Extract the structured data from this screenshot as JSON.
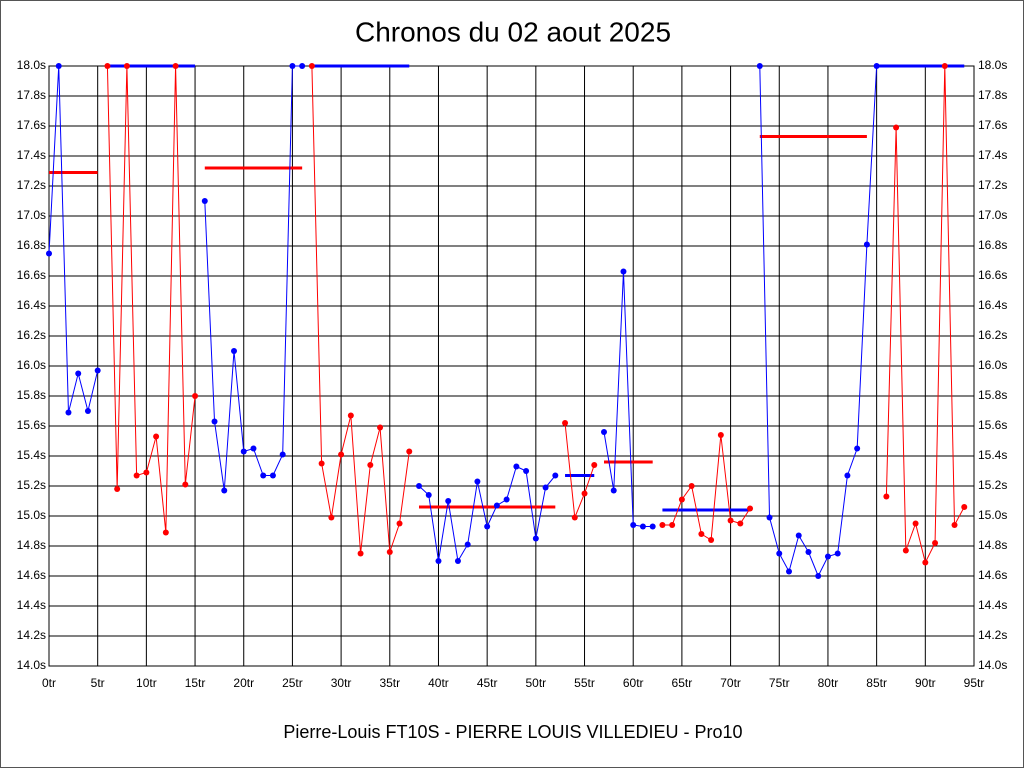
{
  "chart_data": {
    "type": "line",
    "title": "Chronos du 02 aout 2025",
    "x_label": "Pierre-Louis FT10S - PIERRE LOUIS VILLEDIEU - Pro10",
    "x": [
      0,
      1,
      2,
      3,
      4,
      5,
      6,
      7,
      8,
      9,
      10,
      11,
      12,
      13,
      14,
      15,
      16,
      17,
      18,
      19,
      20,
      21,
      22,
      23,
      24,
      25,
      26,
      27,
      28,
      29,
      30,
      31,
      32,
      33,
      34,
      35,
      36,
      37,
      38,
      39,
      40,
      41,
      42,
      43,
      44,
      45,
      46,
      47,
      48,
      49,
      50,
      51,
      52,
      53,
      54,
      55,
      56,
      57,
      58,
      59,
      60,
      61,
      62,
      63,
      64,
      65,
      66,
      67,
      68,
      69,
      70,
      71,
      72,
      73,
      74,
      75,
      76,
      77,
      78,
      79,
      80,
      81,
      82,
      83,
      84,
      85,
      86,
      87,
      88,
      89,
      90,
      91,
      92,
      93,
      94
    ],
    "series": [
      {
        "color": "#0000ff",
        "values": [
          16.75,
          18,
          15.69,
          15.95,
          15.7,
          15.97,
          null,
          null,
          null,
          null,
          null,
          null,
          null,
          null,
          null,
          null,
          17.1,
          15.63,
          15.17,
          16.1,
          15.43,
          15.45,
          15.27,
          15.27,
          15.41,
          18,
          18,
          null,
          null,
          null,
          null,
          null,
          null,
          null,
          null,
          null,
          null,
          null,
          15.2,
          15.14,
          14.7,
          15.1,
          14.7,
          14.81,
          15.23,
          14.93,
          15.07,
          15.11,
          15.33,
          15.3,
          14.85,
          15.19,
          15.27,
          null,
          null,
          null,
          null,
          15.56,
          15.17,
          16.63,
          14.94,
          14.93,
          14.93,
          null,
          null,
          null,
          null,
          null,
          null,
          null,
          null,
          null,
          null,
          18,
          14.99,
          14.75,
          14.63,
          14.87,
          14.76,
          14.6,
          14.73,
          14.75,
          15.27,
          15.45,
          16.81,
          18,
          null,
          null,
          null,
          null,
          null,
          null,
          null,
          null,
          null
        ]
      },
      {
        "color": "#ff0000",
        "values": [
          null,
          null,
          null,
          null,
          null,
          null,
          18,
          15.18,
          18,
          15.27,
          15.29,
          15.53,
          14.89,
          18,
          15.21,
          15.8,
          null,
          null,
          null,
          null,
          null,
          null,
          null,
          null,
          null,
          null,
          null,
          18,
          15.35,
          14.99,
          15.41,
          15.67,
          14.75,
          15.34,
          15.59,
          14.76,
          14.95,
          15.43,
          null,
          null,
          null,
          null,
          null,
          null,
          null,
          null,
          null,
          null,
          null,
          null,
          null,
          null,
          null,
          15.62,
          14.99,
          15.15,
          15.34,
          null,
          null,
          null,
          null,
          null,
          null,
          14.94,
          14.94,
          15.11,
          15.2,
          14.88,
          14.84,
          15.54,
          14.97,
          14.95,
          15.05,
          null,
          null,
          null,
          null,
          null,
          null,
          null,
          null,
          null,
          null,
          null,
          null,
          null,
          15.13,
          17.59,
          14.77,
          14.95,
          14.69,
          14.82,
          18,
          14.94,
          15.06
        ]
      }
    ],
    "averages": [
      {
        "from": 0,
        "to": 5,
        "value": 17.29,
        "color": "#ff0000"
      },
      {
        "from": 6,
        "to": 15,
        "value": 18,
        "color": "#0000ff"
      },
      {
        "from": 16,
        "to": 26,
        "value": 17.32,
        "color": "#ff0000"
      },
      {
        "from": 27,
        "to": 37,
        "value": 18,
        "color": "#0000ff"
      },
      {
        "from": 38,
        "to": 52,
        "value": 15.06,
        "color": "#ff0000"
      },
      {
        "from": 53,
        "to": 56,
        "value": 15.27,
        "color": "#0000ff"
      },
      {
        "from": 57,
        "to": 62,
        "value": 15.36,
        "color": "#ff0000"
      },
      {
        "from": 63,
        "to": 72,
        "value": 15.04,
        "color": "#0000ff"
      },
      {
        "from": 73,
        "to": 84,
        "value": 17.53,
        "color": "#ff0000"
      },
      {
        "from": 85,
        "to": 94,
        "value": 18,
        "color": "#0000ff"
      }
    ],
    "xlim": [
      0,
      95
    ],
    "xticks": [
      {
        "value": 0,
        "label": "0tr"
      },
      {
        "value": 5,
        "label": "5tr"
      },
      {
        "value": 10,
        "label": "10tr"
      },
      {
        "value": 15,
        "label": "15tr"
      },
      {
        "value": 20,
        "label": "20tr"
      },
      {
        "value": 25,
        "label": "25tr"
      },
      {
        "value": 30,
        "label": "30tr"
      },
      {
        "value": 35,
        "label": "35tr"
      },
      {
        "value": 40,
        "label": "40tr"
      },
      {
        "value": 45,
        "label": "45tr"
      },
      {
        "value": 50,
        "label": "50tr"
      },
      {
        "value": 55,
        "label": "55tr"
      },
      {
        "value": 60,
        "label": "60tr"
      },
      {
        "value": 65,
        "label": "65tr"
      },
      {
        "value": 70,
        "label": "70tr"
      },
      {
        "value": 75,
        "label": "75tr"
      },
      {
        "value": 80,
        "label": "80tr"
      },
      {
        "value": 85,
        "label": "85tr"
      },
      {
        "value": 90,
        "label": "90tr"
      },
      {
        "value": 95,
        "label": "95tr"
      }
    ],
    "ylim": [
      14,
      18
    ],
    "yticks": [
      {
        "value": 14,
        "label": "14.0s"
      },
      {
        "value": 14.2,
        "label": "14.2s"
      },
      {
        "value": 14.4,
        "label": "14.4s"
      },
      {
        "value": 14.6,
        "label": "14.6s"
      },
      {
        "value": 14.8,
        "label": "14.8s"
      },
      {
        "value": 15,
        "label": "15.0s"
      },
      {
        "value": 15.2,
        "label": "15.2s"
      },
      {
        "value": 15.4,
        "label": "15.4s"
      },
      {
        "value": 15.6,
        "label": "15.6s"
      },
      {
        "value": 15.8,
        "label": "15.8s"
      },
      {
        "value": 16,
        "label": "16.0s"
      },
      {
        "value": 16.2,
        "label": "16.2s"
      },
      {
        "value": 16.4,
        "label": "16.4s"
      },
      {
        "value": 16.6,
        "label": "16.6s"
      },
      {
        "value": 16.8,
        "label": "16.8s"
      },
      {
        "value": 17,
        "label": "17.0s"
      },
      {
        "value": 17.2,
        "label": "17.2s"
      },
      {
        "value": 17.4,
        "label": "17.4s"
      },
      {
        "value": 17.6,
        "label": "17.6s"
      },
      {
        "value": 17.8,
        "label": "17.8s"
      },
      {
        "value": 18,
        "label": "18.0s"
      }
    ],
    "grid": true
  }
}
